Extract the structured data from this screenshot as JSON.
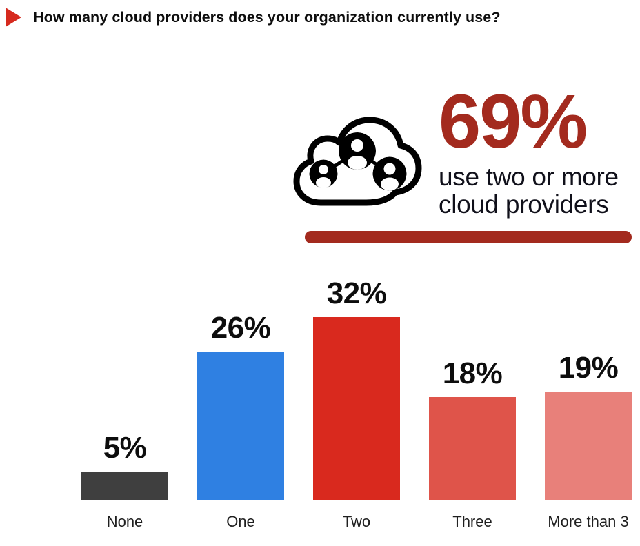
{
  "header": {
    "title": "How many cloud providers does your organization currently use?",
    "bullet_icon": "triangle-right-icon",
    "bullet_color": "#d62a1e"
  },
  "callout": {
    "icon": "cloud-network-users-icon",
    "stat": "69%",
    "line1": "use two or more",
    "line2": "cloud providers",
    "stat_color": "#a32a1e",
    "rule_color": "#a32a1e"
  },
  "chart_data": {
    "type": "bar",
    "title": "How many cloud providers does your organization currently use?",
    "categories": [
      "None",
      "One",
      "Two",
      "Three",
      "More than 3"
    ],
    "values": [
      5,
      26,
      32,
      18,
      19
    ],
    "value_labels": [
      "5%",
      "26%",
      "32%",
      "18%",
      "19%"
    ],
    "bar_colors": [
      "#3f3f3f",
      "#2f80e2",
      "#d9291e",
      "#df544a",
      "#e8807a"
    ],
    "xlabel": "",
    "ylabel": "",
    "ylim": [
      0,
      35
    ],
    "grid": false,
    "axes_shown": false,
    "legend": "none",
    "annotation": "69% use two or more cloud providers"
  }
}
